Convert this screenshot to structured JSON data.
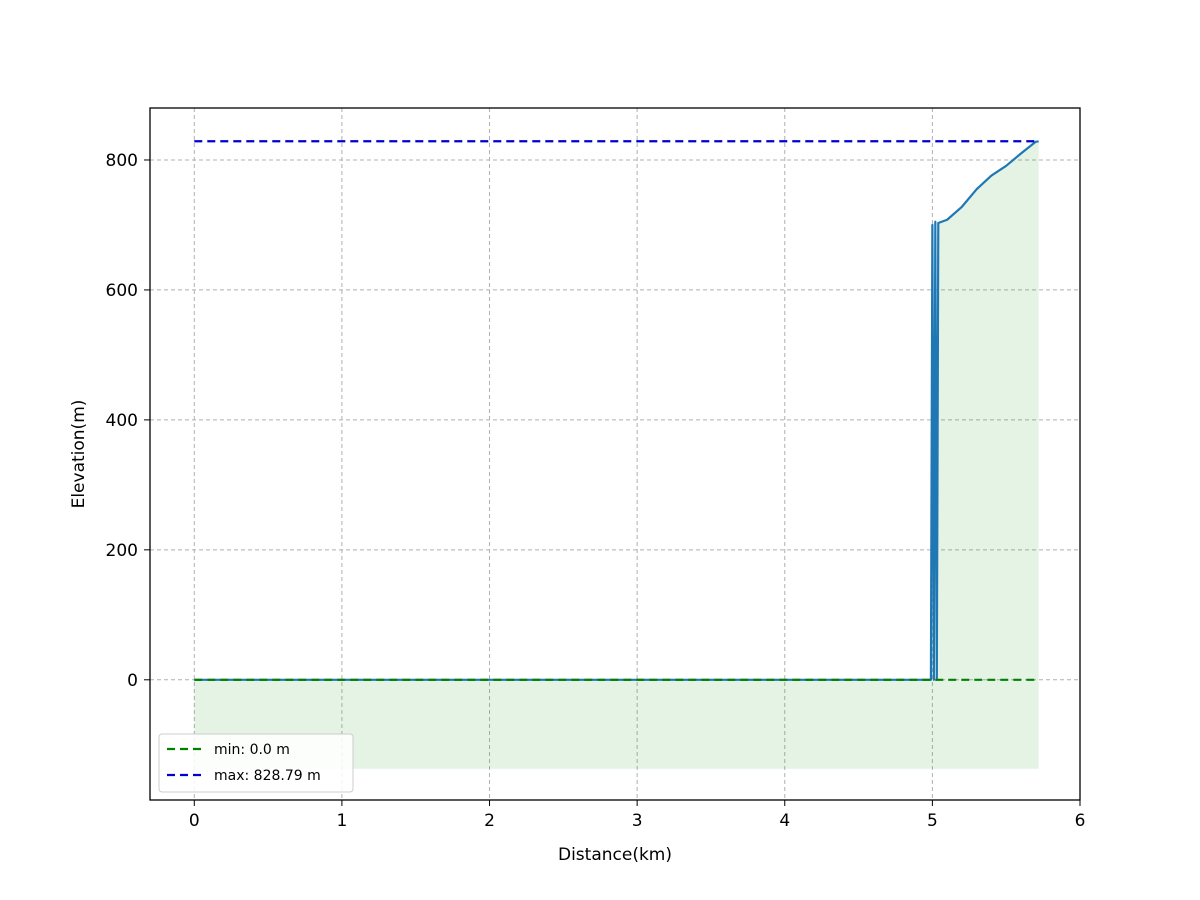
{
  "chart_data": {
    "type": "line",
    "xlabel": "Distance(km)",
    "ylabel": "Elevation(m)",
    "xlim": [
      -0.3,
      6.0
    ],
    "ylim": [
      -185,
      880
    ],
    "xticks": [
      0,
      1,
      2,
      3,
      4,
      5,
      6
    ],
    "yticks": [
      0,
      200,
      400,
      600,
      800
    ],
    "grid": true,
    "legend_position": "lower-left",
    "fill": {
      "baseline": -137,
      "color": "#2ca02c",
      "opacity": 0.13
    },
    "profile": {
      "color": "#1f77b4",
      "x": [
        0,
        1,
        2,
        3,
        4,
        4.99,
        5.0,
        5.01,
        5.02,
        5.03,
        5.04,
        5.1,
        5.2,
        5.3,
        5.4,
        5.5,
        5.6,
        5.7,
        5.72
      ],
      "y": [
        0,
        0,
        0,
        0,
        0,
        0,
        700,
        0,
        705,
        0,
        703,
        708,
        728,
        755,
        776,
        791,
        810,
        828,
        828.79
      ]
    },
    "series": [
      {
        "name": "min: 0.0 m",
        "color": "#008000",
        "dash": "dashed",
        "x": [
          0,
          5.72
        ],
        "y": [
          0,
          0
        ]
      },
      {
        "name": "max: 828.79 m",
        "color": "#0000cc",
        "dash": "dashed",
        "x": [
          0,
          5.72
        ],
        "y": [
          828.79,
          828.79
        ]
      }
    ]
  }
}
